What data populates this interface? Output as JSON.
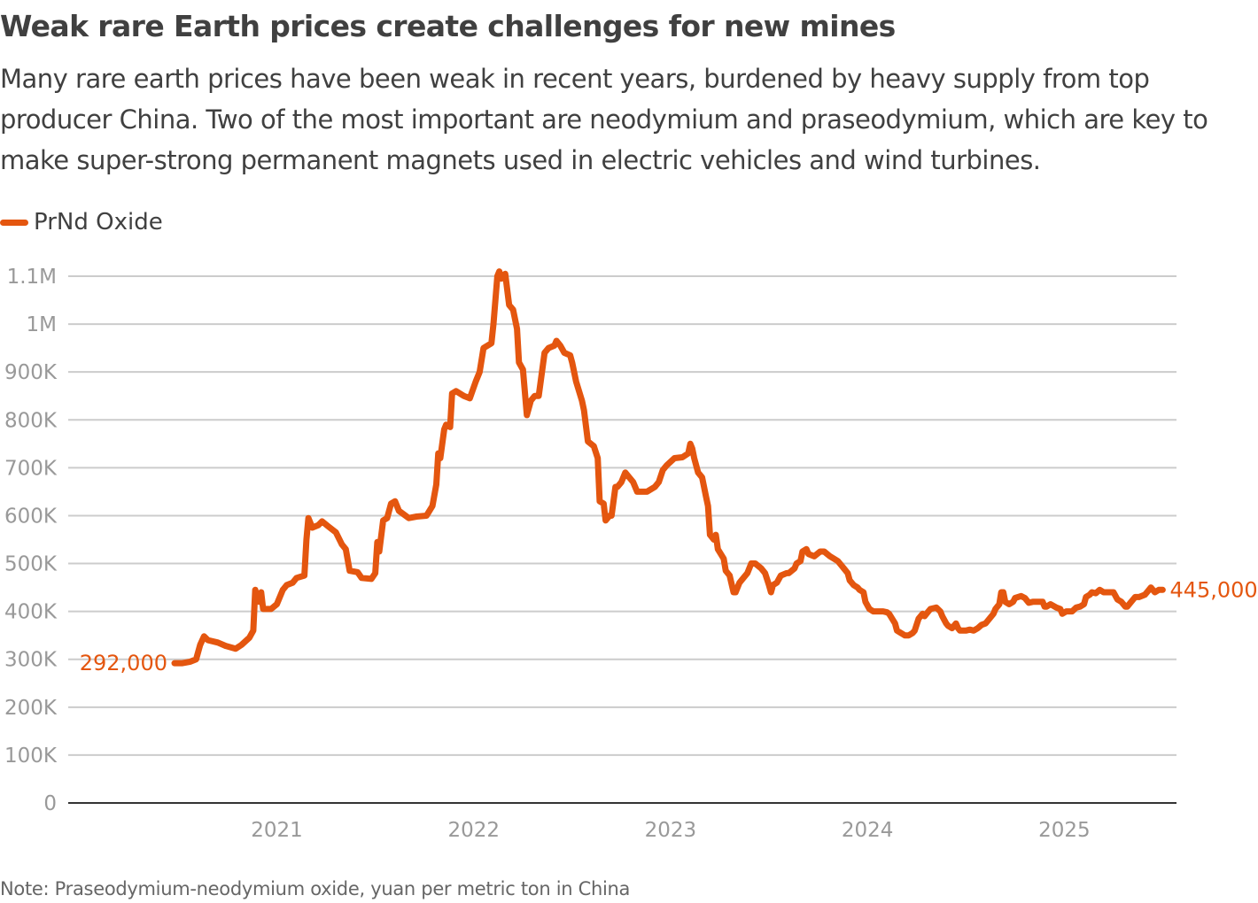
{
  "title": "Weak rare Earth prices create challenges for new mines",
  "subtitle": "Many rare earth prices have been weak in recent years, burdened by heavy supply from top producer China. Two of the most important are neodymium and praseodymium, which are key to make super-strong permanent magnets used in electric vehicles and wind turbines.",
  "note": "Note: Praseodymium-neodymium oxide, yuan per metric ton in China",
  "colors": {
    "series": "#E4560F",
    "grid": "#CCCCCC",
    "axis": "#333333",
    "tick_text": "#999999"
  },
  "chart_data": {
    "type": "line",
    "title": "Weak rare Earth prices create challenges for new mines",
    "xlabel": "",
    "ylabel": "",
    "xlim": [
      2019.94,
      2025.57
    ],
    "ylim": [
      0,
      1100000
    ],
    "grid": true,
    "legend_placement": "top-left",
    "y_ticks": [
      0,
      100000,
      200000,
      300000,
      400000,
      500000,
      600000,
      700000,
      800000,
      900000,
      1000000,
      1100000
    ],
    "y_tick_labels": [
      "0",
      "100K",
      "200K",
      "300K",
      "400K",
      "500K",
      "600K",
      "700K",
      "800K",
      "900K",
      "1M",
      "1.1M"
    ],
    "x_ticks": [
      2021,
      2022,
      2023,
      2024,
      2025
    ],
    "x_tick_labels": [
      "2021",
      "2022",
      "2023",
      "2024",
      "2025"
    ],
    "annotations": [
      {
        "text": "292,000",
        "position": "start"
      },
      {
        "text": "445,000",
        "position": "end"
      }
    ],
    "series": [
      {
        "name": "PrNd Oxide",
        "x": [
          2020.48,
          2020.52,
          2020.56,
          2020.59,
          2020.61,
          2020.63,
          2020.65,
          2020.7,
          2020.74,
          2020.79,
          2020.82,
          2020.86,
          2020.88,
          2020.89,
          2020.91,
          2020.92,
          2020.93,
          2020.97,
          2021.0,
          2021.03,
          2021.05,
          2021.08,
          2021.1,
          2021.14,
          2021.15,
          2021.16,
          2021.18,
          2021.21,
          2021.23,
          2021.26,
          2021.3,
          2021.33,
          2021.35,
          2021.37,
          2021.41,
          2021.43,
          2021.48,
          2021.5,
          2021.51,
          2021.52,
          2021.54,
          2021.56,
          2021.58,
          2021.6,
          2021.62,
          2021.67,
          2021.71,
          2021.76,
          2021.79,
          2021.81,
          2021.82,
          2021.83,
          2021.85,
          2021.86,
          2021.88,
          2021.89,
          2021.91,
          2021.95,
          2021.98,
          2022.01,
          2022.03,
          2022.05,
          2022.09,
          2022.1,
          2022.12,
          2022.13,
          2022.14,
          2022.16,
          2022.18,
          2022.2,
          2022.22,
          2022.23,
          2022.25,
          2022.27,
          2022.29,
          2022.31,
          2022.33,
          2022.34,
          2022.36,
          2022.38,
          2022.41,
          2022.42,
          2022.44,
          2022.46,
          2022.49,
          2022.5,
          2022.52,
          2022.55,
          2022.56,
          2022.58,
          2022.61,
          2022.63,
          2022.64,
          2022.66,
          2022.67,
          2022.69,
          2022.7,
          2022.72,
          2022.73,
          2022.75,
          2022.77,
          2022.79,
          2022.81,
          2022.83,
          2022.88,
          2022.92,
          2022.94,
          2022.96,
          2022.98,
          2023.02,
          2023.06,
          2023.09,
          2023.1,
          2023.11,
          2023.12,
          2023.14,
          2023.16,
          2023.18,
          2023.19,
          2023.2,
          2023.22,
          2023.23,
          2023.24,
          2023.27,
          2023.28,
          2023.3,
          2023.32,
          2023.33,
          2023.35,
          2023.37,
          2023.39,
          2023.41,
          2023.43,
          2023.46,
          2023.48,
          2023.5,
          2023.51,
          2023.52,
          2023.54,
          2023.56,
          2023.59,
          2023.6,
          2023.63,
          2023.64,
          2023.66,
          2023.67,
          2023.69,
          2023.7,
          2023.73,
          2023.76,
          2023.78,
          2023.81,
          2023.83,
          2023.85,
          2023.87,
          2023.88,
          2023.9,
          2023.91,
          2023.93,
          2023.95,
          2023.96,
          2023.98,
          2023.99,
          2024.01,
          2024.03,
          2024.05,
          2024.08,
          2024.1,
          2024.11,
          2024.14,
          2024.15,
          2024.17,
          2024.19,
          2024.21,
          2024.23,
          2024.24,
          2024.26,
          2024.28,
          2024.29,
          2024.31,
          2024.32,
          2024.35,
          2024.37,
          2024.38,
          2024.4,
          2024.41,
          2024.43,
          2024.45,
          2024.46,
          2024.47,
          2024.5,
          2024.52,
          2024.54,
          2024.56,
          2024.58,
          2024.6,
          2024.62,
          2024.64,
          2024.65,
          2024.67,
          2024.68,
          2024.69,
          2024.7,
          2024.72,
          2024.74,
          2024.75,
          2024.78,
          2024.8,
          2024.82,
          2024.84,
          2024.87,
          2024.89,
          2024.9,
          2024.91,
          2024.93,
          2024.96,
          2024.98,
          2024.99,
          2025.01,
          2025.04,
          2025.06,
          2025.08,
          2025.1,
          2025.11,
          2025.13,
          2025.14,
          2025.16,
          2025.18,
          2025.2,
          2025.23,
          2025.25,
          2025.27,
          2025.29,
          2025.31,
          2025.32,
          2025.34,
          2025.36,
          2025.38,
          2025.41,
          2025.42,
          2025.44,
          2025.46,
          2025.48,
          2025.5
        ],
        "values": [
          292000,
          292000,
          295000,
          300000,
          330000,
          348000,
          340000,
          335000,
          328000,
          322000,
          330000,
          345000,
          360000,
          445000,
          420000,
          440000,
          405000,
          405000,
          415000,
          445000,
          455000,
          460000,
          470000,
          475000,
          550000,
          595000,
          575000,
          580000,
          588000,
          578000,
          565000,
          540000,
          530000,
          485000,
          482000,
          470000,
          468000,
          480000,
          545000,
          525000,
          590000,
          595000,
          625000,
          630000,
          610000,
          595000,
          598000,
          600000,
          620000,
          665000,
          730000,
          720000,
          780000,
          790000,
          785000,
          855000,
          860000,
          850000,
          845000,
          880000,
          900000,
          950000,
          960000,
          1000000,
          1100000,
          1110000,
          1095000,
          1105000,
          1040000,
          1030000,
          990000,
          920000,
          905000,
          810000,
          840000,
          850000,
          850000,
          880000,
          940000,
          950000,
          955000,
          965000,
          955000,
          940000,
          935000,
          920000,
          880000,
          840000,
          820000,
          755000,
          745000,
          720000,
          630000,
          625000,
          590000,
          600000,
          600000,
          660000,
          660000,
          670000,
          690000,
          680000,
          670000,
          650000,
          650000,
          660000,
          670000,
          695000,
          705000,
          720000,
          722000,
          730000,
          750000,
          740000,
          720000,
          690000,
          680000,
          640000,
          620000,
          560000,
          550000,
          560000,
          530000,
          510000,
          485000,
          475000,
          440000,
          440000,
          460000,
          470000,
          480000,
          500000,
          500000,
          490000,
          480000,
          455000,
          440000,
          455000,
          460000,
          475000,
          480000,
          480000,
          490000,
          500000,
          505000,
          525000,
          530000,
          520000,
          515000,
          525000,
          525000,
          515000,
          510000,
          505000,
          495000,
          490000,
          480000,
          465000,
          455000,
          450000,
          445000,
          440000,
          420000,
          405000,
          400000,
          400000,
          400000,
          398000,
          395000,
          375000,
          360000,
          355000,
          350000,
          350000,
          355000,
          360000,
          385000,
          395000,
          390000,
          400000,
          405000,
          408000,
          400000,
          390000,
          375000,
          370000,
          365000,
          375000,
          365000,
          360000,
          360000,
          362000,
          360000,
          365000,
          372000,
          375000,
          385000,
          395000,
          405000,
          415000,
          440000,
          440000,
          420000,
          415000,
          420000,
          428000,
          432000,
          428000,
          418000,
          420000,
          420000,
          420000,
          410000,
          410000,
          415000,
          408000,
          405000,
          395000,
          400000,
          400000,
          408000,
          410000,
          415000,
          430000,
          435000,
          440000,
          438000,
          445000,
          440000,
          440000,
          440000,
          425000,
          420000,
          410000,
          410000,
          420000,
          430000,
          430000,
          435000,
          440000,
          450000,
          440000,
          445000,
          445000
        ]
      }
    ]
  }
}
